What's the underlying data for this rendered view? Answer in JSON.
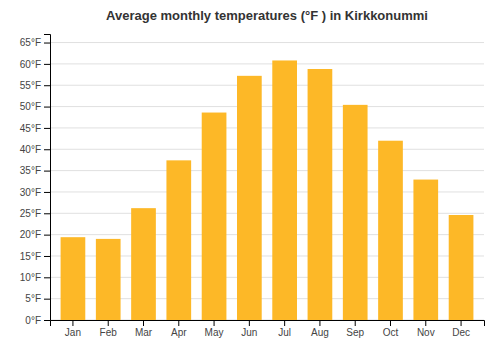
{
  "chart_data": {
    "type": "bar",
    "title": "Average monthly temperatures (°F ) in Kirkkonummi",
    "categories": [
      "Jan",
      "Feb",
      "Mar",
      "Apr",
      "May",
      "Jun",
      "Jul",
      "Aug",
      "Sep",
      "Oct",
      "Nov",
      "Dec"
    ],
    "values": [
      19.4,
      19.0,
      26.2,
      37.4,
      48.6,
      57.2,
      60.8,
      58.8,
      50.4,
      42.0,
      32.9,
      24.6
    ],
    "color": "#FDB827",
    "ylim": [
      0,
      67
    ],
    "yticks": [
      {
        "value": 0,
        "label": "0°F"
      },
      {
        "value": 5,
        "label": "5°F"
      },
      {
        "value": 10,
        "label": "10°F"
      },
      {
        "value": 15,
        "label": "15°F"
      },
      {
        "value": 20,
        "label": "20°F"
      },
      {
        "value": 25,
        "label": "25°F"
      },
      {
        "value": 30,
        "label": "30°F"
      },
      {
        "value": 35,
        "label": "35°F"
      },
      {
        "value": 40,
        "label": "40°F"
      },
      {
        "value": 45,
        "label": "45°F"
      },
      {
        "value": 50,
        "label": "50°F"
      },
      {
        "value": 55,
        "label": "55°F"
      },
      {
        "value": 60,
        "label": "60°F"
      },
      {
        "value": 65,
        "label": "65°F"
      }
    ],
    "grid": true
  }
}
